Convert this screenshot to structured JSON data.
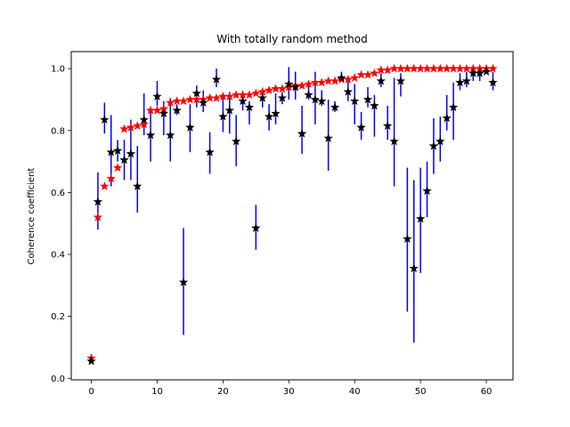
{
  "chart_data": {
    "type": "scatter",
    "title": "With totally random method",
    "xlabel": "",
    "ylabel": "Coherence coefficient",
    "xlim": [
      -3.05,
      64.05
    ],
    "ylim": [
      -0.005,
      1.055
    ],
    "xticks": [
      0,
      10,
      20,
      30,
      40,
      50,
      60
    ],
    "yticks": [
      0.0,
      0.2,
      0.4,
      0.6,
      0.8,
      1.0
    ],
    "grid": false,
    "legend": "none",
    "colors": {
      "errorbar": "#0000ff",
      "black_series": "#000000",
      "red_series": "#ff0000"
    },
    "series": [
      {
        "marker": "star",
        "color": "#000000",
        "has_errorbars": true,
        "x": [
          0,
          1,
          2,
          3,
          4,
          5,
          6,
          7,
          8,
          9,
          10,
          11,
          12,
          13,
          14,
          15,
          16,
          17,
          18,
          19,
          20,
          21,
          22,
          23,
          24,
          25,
          26,
          27,
          28,
          29,
          30,
          31,
          32,
          33,
          34,
          35,
          36,
          37,
          38,
          39,
          40,
          41,
          42,
          43,
          44,
          45,
          46,
          47,
          48,
          49,
          50,
          51,
          52,
          53,
          54,
          55,
          56,
          57,
          58,
          59,
          60,
          61
        ],
        "y": [
          0.055,
          0.57,
          0.835,
          0.73,
          0.735,
          0.705,
          0.725,
          0.62,
          0.835,
          0.785,
          0.91,
          0.855,
          0.785,
          0.865,
          0.31,
          0.81,
          0.92,
          0.89,
          0.73,
          0.965,
          0.845,
          0.865,
          0.765,
          0.895,
          0.875,
          0.485,
          0.905,
          0.845,
          0.855,
          0.905,
          0.95,
          0.94,
          0.79,
          0.915,
          0.9,
          0.895,
          0.775,
          0.875,
          0.97,
          0.925,
          0.895,
          0.81,
          0.9,
          0.88,
          0.96,
          0.815,
          0.765,
          0.96,
          0.45,
          0.355,
          0.515,
          0.605,
          0.75,
          0.765,
          0.84,
          0.875,
          0.955,
          0.96,
          0.985,
          0.985,
          0.99,
          0.955
        ],
        "err_low": [
          0.06,
          0.48,
          0.79,
          0.62,
          0.7,
          0.64,
          0.64,
          0.535,
          0.785,
          0.7,
          0.88,
          0.785,
          0.7,
          0.85,
          0.14,
          0.73,
          0.875,
          0.86,
          0.66,
          0.94,
          0.795,
          0.79,
          0.685,
          0.865,
          0.82,
          0.415,
          0.875,
          0.8,
          0.82,
          0.885,
          0.9,
          0.9,
          0.725,
          0.9,
          0.82,
          0.88,
          0.67,
          0.86,
          0.96,
          0.895,
          0.82,
          0.77,
          0.875,
          0.78,
          0.94,
          0.77,
          0.62,
          0.91,
          0.215,
          0.115,
          0.34,
          0.52,
          0.66,
          0.7,
          0.8,
          0.77,
          0.93,
          0.94,
          0.96,
          0.96,
          0.99,
          0.93
        ],
        "err_high": [
          0.065,
          0.665,
          0.89,
          0.85,
          0.77,
          0.77,
          0.835,
          0.75,
          0.92,
          0.87,
          0.96,
          0.895,
          0.905,
          0.885,
          0.485,
          0.885,
          0.945,
          0.93,
          0.795,
          1.0,
          0.915,
          0.925,
          0.85,
          0.925,
          0.895,
          0.56,
          0.935,
          0.885,
          0.92,
          0.925,
          1.005,
          0.99,
          0.88,
          0.95,
          0.99,
          0.93,
          0.9,
          0.895,
          0.99,
          0.96,
          0.95,
          0.86,
          0.94,
          0.915,
          0.985,
          0.88,
          0.97,
          0.985,
          0.68,
          0.64,
          0.68,
          0.7,
          0.84,
          0.845,
          0.915,
          0.955,
          0.985,
          0.99,
          1.0,
          1.0,
          1.0,
          0.99
        ]
      },
      {
        "marker": "star",
        "color": "#ff0000",
        "has_errorbars": false,
        "x": [
          0,
          1,
          2,
          3,
          4,
          5,
          6,
          7,
          8,
          9,
          10,
          11,
          12,
          13,
          14,
          15,
          16,
          17,
          18,
          19,
          20,
          21,
          22,
          23,
          24,
          25,
          26,
          27,
          28,
          29,
          30,
          31,
          32,
          33,
          34,
          35,
          36,
          37,
          38,
          39,
          40,
          41,
          42,
          43,
          44,
          45,
          46,
          47,
          48,
          49,
          50,
          51,
          52,
          53,
          54,
          55,
          56,
          57,
          58,
          59,
          60,
          61
        ],
        "y": [
          0.065,
          0.52,
          0.62,
          0.645,
          0.68,
          0.805,
          0.81,
          0.815,
          0.82,
          0.865,
          0.865,
          0.87,
          0.89,
          0.895,
          0.895,
          0.9,
          0.9,
          0.9,
          0.905,
          0.905,
          0.91,
          0.91,
          0.915,
          0.915,
          0.915,
          0.92,
          0.925,
          0.93,
          0.935,
          0.935,
          0.94,
          0.945,
          0.945,
          0.95,
          0.955,
          0.955,
          0.96,
          0.96,
          0.965,
          0.965,
          0.97,
          0.98,
          0.98,
          0.985,
          0.995,
          0.995,
          1.0,
          1.0,
          1.0,
          1.0,
          1.0,
          1.0,
          1.0,
          1.0,
          1.0,
          1.0,
          1.0,
          1.0,
          1.0,
          1.0,
          1.0,
          1.0
        ]
      }
    ]
  }
}
